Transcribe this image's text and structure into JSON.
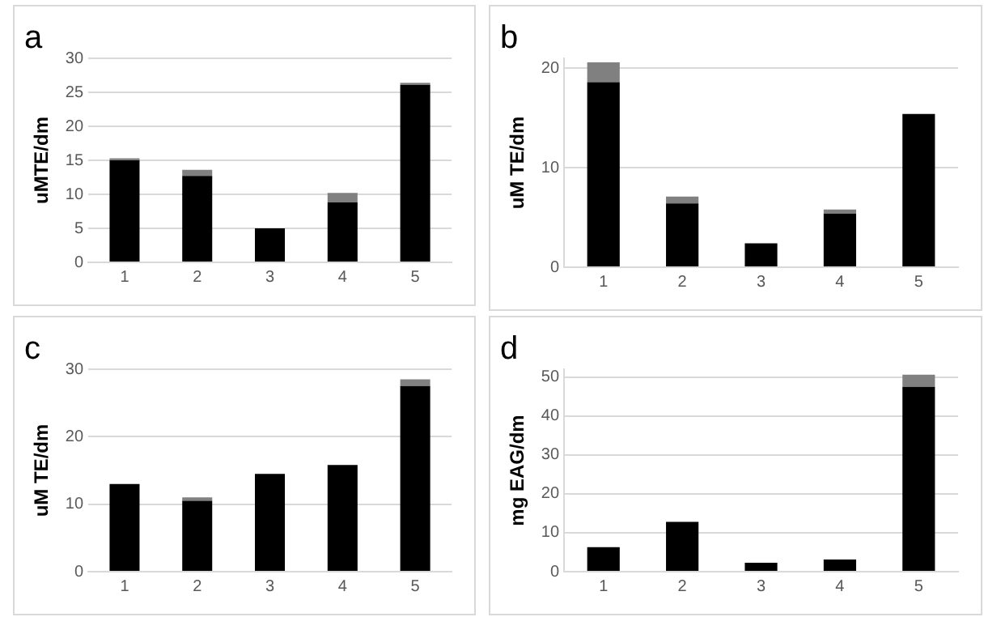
{
  "chart_data": [
    {
      "type": "bar",
      "title": "a",
      "ylabel": "uMTE/dm",
      "categories": [
        "1",
        "2",
        "3",
        "4",
        "5"
      ],
      "stacked": true,
      "grid": "y",
      "legend": false,
      "ylim": [
        0,
        30
      ],
      "yticks": [
        0,
        5,
        10,
        15,
        20,
        25,
        30
      ],
      "series": [
        {
          "color": "#000000",
          "values": [
            15.0,
            12.7,
            5.0,
            8.8,
            26.1
          ]
        },
        {
          "color": "#808080",
          "values": [
            0.3,
            0.9,
            0,
            1.4,
            0.3
          ]
        }
      ]
    },
    {
      "type": "bar",
      "title": "b",
      "ylabel": "uM TE/dm",
      "categories": [
        "1",
        "2",
        "3",
        "4",
        "5"
      ],
      "stacked": true,
      "grid": "y",
      "legend": false,
      "ylim": [
        0,
        21
      ],
      "yticks": [
        0,
        10,
        20
      ],
      "series": [
        {
          "color": "#000000",
          "values": [
            18.6,
            6.4,
            2.4,
            5.4,
            15.4
          ]
        },
        {
          "color": "#808080",
          "values": [
            2.0,
            0.7,
            0,
            0.4,
            0
          ]
        }
      ]
    },
    {
      "type": "bar",
      "title": "c",
      "ylabel": "uM TE/dm",
      "categories": [
        "1",
        "2",
        "3",
        "4",
        "5"
      ],
      "stacked": true,
      "grid": "y",
      "legend": false,
      "ylim": [
        0,
        30
      ],
      "yticks": [
        0,
        10,
        20,
        30
      ],
      "series": [
        {
          "color": "#000000",
          "values": [
            13.0,
            10.5,
            14.5,
            15.8,
            27.5
          ]
        },
        {
          "color": "#808080",
          "values": [
            0,
            0.5,
            0,
            0,
            1.0
          ]
        }
      ]
    },
    {
      "type": "bar",
      "title": "d",
      "ylabel": "mg EAG/dm",
      "categories": [
        "1",
        "2",
        "3",
        "4",
        "5"
      ],
      "stacked": true,
      "grid": "y",
      "legend": false,
      "ylim": [
        0,
        52
      ],
      "yticks": [
        0,
        10,
        20,
        30,
        40,
        50
      ],
      "series": [
        {
          "color": "#000000",
          "values": [
            6.3,
            12.8,
            2.3,
            3.1,
            47.5
          ]
        },
        {
          "color": "#808080",
          "values": [
            0,
            0,
            0,
            0,
            3.1
          ]
        }
      ]
    }
  ]
}
